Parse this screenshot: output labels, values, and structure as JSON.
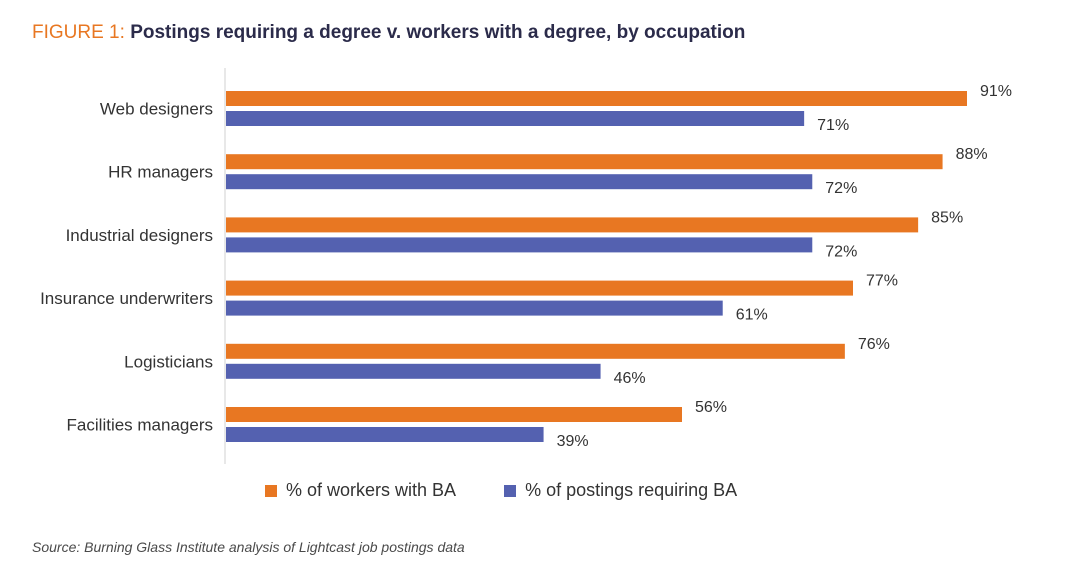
{
  "header": {
    "prefix": "FIGURE 1:",
    "title": "Postings requiring a degree v. workers with a degree, by occupation"
  },
  "chart_data": {
    "type": "bar",
    "orientation": "horizontal",
    "categories": [
      "Web designers",
      "HR managers",
      "Industrial designers",
      "Insurance underwriters",
      "Logisticians",
      "Facilities managers"
    ],
    "series": [
      {
        "name": "% of workers with BA",
        "color": "#e87722",
        "values": [
          91,
          88,
          85,
          77,
          76,
          56
        ],
        "labels": [
          "91%",
          "88%",
          "85%",
          "77%",
          "76%",
          "56%"
        ]
      },
      {
        "name": "% of postings requiring BA",
        "color": "#5461b0",
        "values": [
          71,
          72,
          72,
          61,
          46,
          39
        ],
        "labels": [
          "71%",
          "72%",
          "72%",
          "61%",
          "46%",
          "39%"
        ]
      }
    ],
    "xlim": [
      0,
      100
    ],
    "grid": false,
    "legend_position": "bottom"
  },
  "footer": {
    "source": "Source: Burning Glass Institute analysis of Lightcast job postings data"
  }
}
